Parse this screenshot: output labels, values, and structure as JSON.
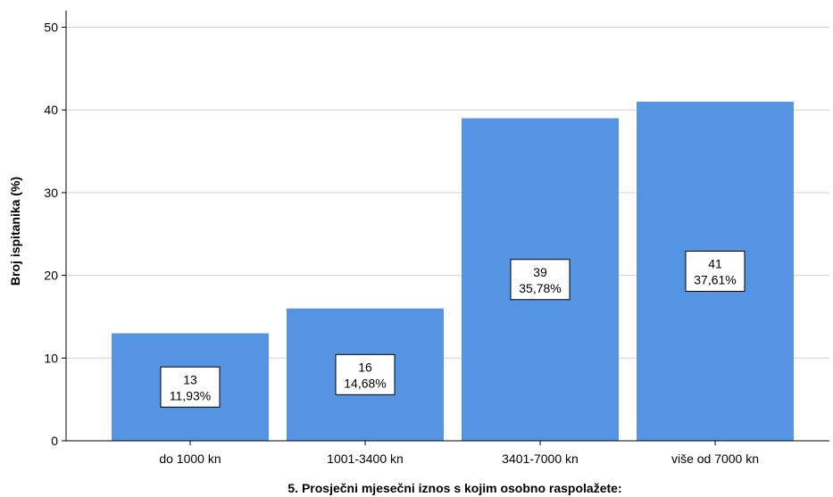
{
  "chart_data": {
    "type": "bar",
    "categories": [
      "do 1000 kn",
      "1001-3400 kn",
      "3401-7000 kn",
      "više od 7000 kn"
    ],
    "values": [
      13,
      16,
      39,
      41
    ],
    "data_labels": [
      [
        "13",
        "11,93%"
      ],
      [
        "16",
        "14,68%"
      ],
      [
        "39",
        "35,78%"
      ],
      [
        "41",
        "37,61%"
      ]
    ],
    "title": "",
    "xlabel": "5. Prosječni mjesečni iznos s kojim osobno raspolažete:",
    "ylabel": "Broj ispitanika (%)",
    "ylim": [
      0,
      52
    ],
    "yticks": [
      0,
      10,
      20,
      30,
      40,
      50
    ],
    "grid": true,
    "bar_color": "#5594E2",
    "gridline_color": "#D0D0D0"
  }
}
